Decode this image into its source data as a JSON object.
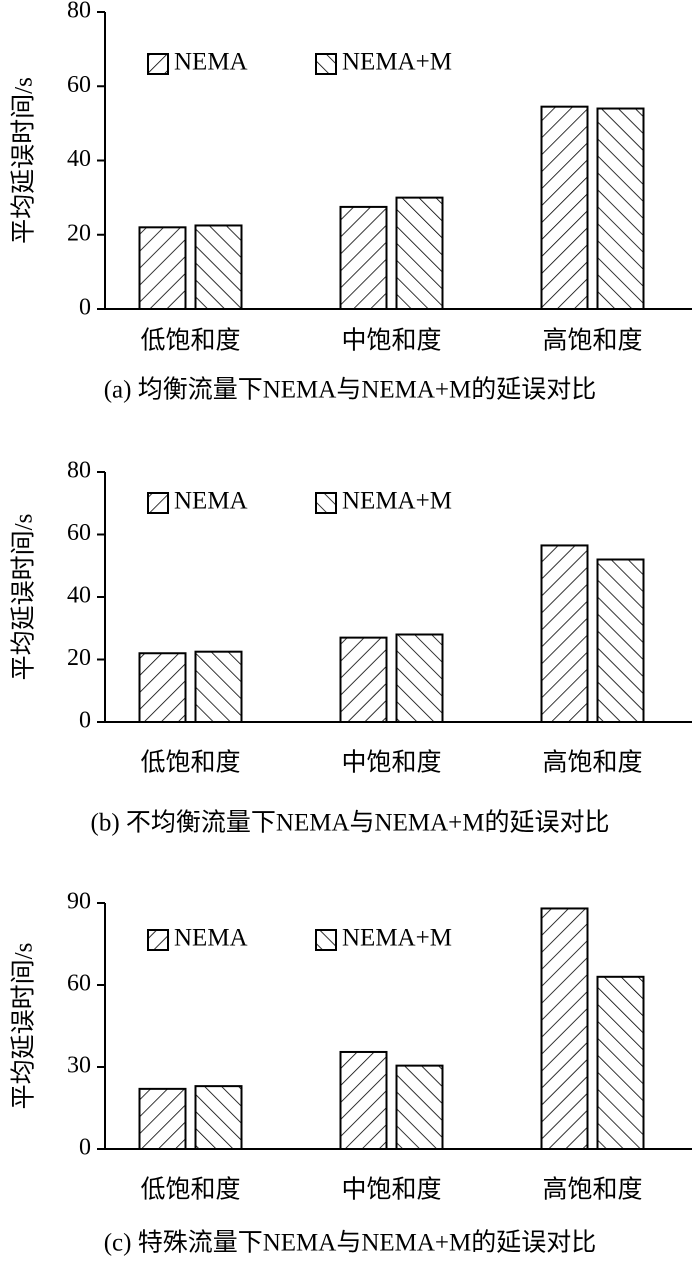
{
  "chart_data": [
    {
      "type": "bar",
      "title": "(a) 均衡流量下NEMA与NEMA+M的延误对比",
      "ylabel": "平均延误时间/s",
      "categories": [
        "低饱和度",
        "中饱和度",
        "高饱和度"
      ],
      "series": [
        {
          "name": "NEMA",
          "color": "#000000",
          "hatch": "/",
          "values": [
            22,
            27.5,
            54.5
          ]
        },
        {
          "name": "NEMA+M",
          "color": "#000000",
          "hatch": "\\",
          "values": [
            22.5,
            30,
            54
          ]
        }
      ],
      "ylim": [
        0,
        80
      ],
      "yticks": [
        0,
        20,
        40,
        60,
        80
      ]
    },
    {
      "type": "bar",
      "title": "(b) 不均衡流量下NEMA与NEMA+M的延误对比",
      "ylabel": "平均延误时间/s",
      "categories": [
        "低饱和度",
        "中饱和度",
        "高饱和度"
      ],
      "series": [
        {
          "name": "NEMA",
          "color": "#000000",
          "hatch": "/",
          "values": [
            22,
            27,
            56.5
          ]
        },
        {
          "name": "NEMA+M",
          "color": "#000000",
          "hatch": "\\",
          "values": [
            22.5,
            28,
            52
          ]
        }
      ],
      "ylim": [
        0,
        80
      ],
      "yticks": [
        0,
        20,
        40,
        60,
        80
      ]
    },
    {
      "type": "bar",
      "title": "(c) 特殊流量下NEMA与NEMA+M的延误对比",
      "ylabel": "平均延误时间/s",
      "categories": [
        "低饱和度",
        "中饱和度",
        "高饱和度"
      ],
      "series": [
        {
          "name": "NEMA",
          "color": "#000000",
          "hatch": "/",
          "values": [
            22,
            35.5,
            88
          ]
        },
        {
          "name": "NEMA+M",
          "color": "#000000",
          "hatch": "\\",
          "values": [
            23,
            30.5,
            63
          ]
        }
      ],
      "ylim": [
        0,
        90
      ],
      "yticks": [
        0,
        30,
        60,
        90
      ]
    }
  ]
}
